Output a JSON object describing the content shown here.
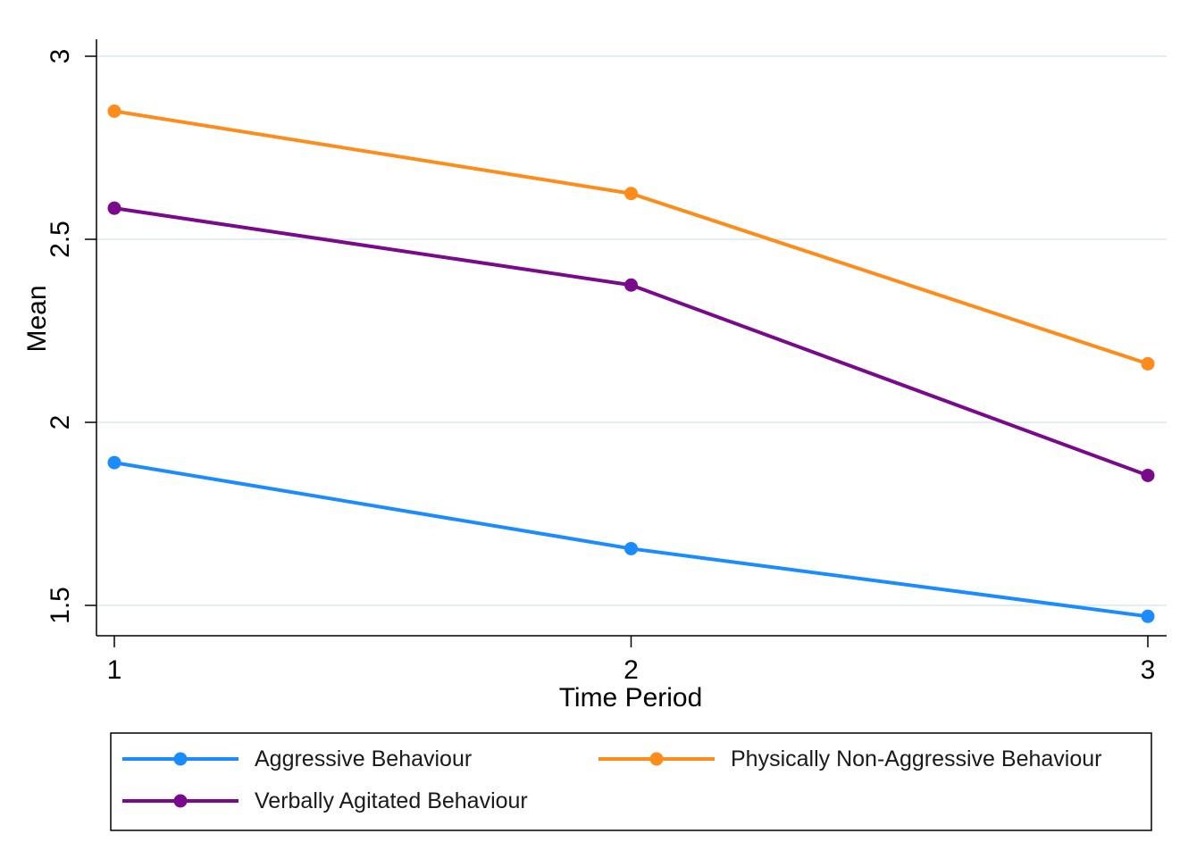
{
  "chart_data": {
    "type": "line",
    "x": [
      1,
      2,
      3
    ],
    "xlabel": "Time Period",
    "ylabel": "Mean",
    "xlim": [
      1,
      3
    ],
    "ylim": [
      1.5,
      3
    ],
    "x_ticks": [
      "1",
      "2",
      "3"
    ],
    "y_ticks": [
      "1.5",
      "2",
      "2.5",
      "3"
    ],
    "grid": true,
    "legend_position": "bottom",
    "series": [
      {
        "name": "Aggressive Behaviour",
        "color": "#1a8cff",
        "values": [
          1.89,
          1.655,
          1.47
        ]
      },
      {
        "name": "Physically Non-Aggressive Behaviour",
        "color": "#ff8c1a",
        "values": [
          2.85,
          2.625,
          2.16
        ]
      },
      {
        "name": "Verbally Agitated Behaviour",
        "color": "#7a0a8c",
        "values": [
          2.585,
          2.375,
          1.855
        ]
      }
    ]
  }
}
